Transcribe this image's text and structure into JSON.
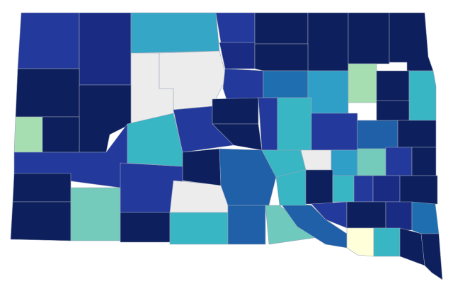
{
  "map": {
    "region_colors": [
      "#233a9c",
      "#1a2b84",
      "#35a6c6",
      "#233a9c",
      "#0d1f5c",
      "#0d1f5c",
      "#0d1f5c",
      "#0d1f5c",
      "#0d1f5c",
      "#ececec",
      "#ececec",
      "#1a2b84",
      "#0d1f5c",
      "#233a9c",
      "#1f6fb0",
      "#2f9fc8",
      "#a6deb2",
      "#0d1f5c",
      "#38b6c4",
      "#0d1f5c",
      "#a6deb2",
      "#0d1f5c",
      "#233a9c",
      "#0d1f5c",
      "#0d1f5c",
      "#74cbbb",
      "#233a9c",
      "#0d1f5c",
      "#38b6c4",
      "#ececec",
      "#38b6c4",
      "#233a9c",
      "#0d1f5c",
      "#0d1f5c",
      "#0d1f5c",
      "#2060a8",
      "#2060a8",
      "#6fc9bd",
      "#2060a8",
      "#233a9c",
      "#38b6c4",
      "#233a9c",
      "#2060a8",
      "#0d1f5c",
      "#0d1f5c",
      "#38b6c4",
      "#ececec",
      "#2f9fc8",
      "#74cbbb",
      "#233a9c",
      "#0d1f5c",
      "#38b6c4",
      "#0d1f5c",
      "#38b6c4",
      "#233a9c",
      "#1a2b84",
      "#0d1f5c",
      "#233a9c",
      "#0d1f5c",
      "#1a2b84",
      "#1f6fb0",
      "#ffffd9",
      "#38b6c4",
      "#0d1f5c",
      "#0d1f5c"
    ]
  }
}
